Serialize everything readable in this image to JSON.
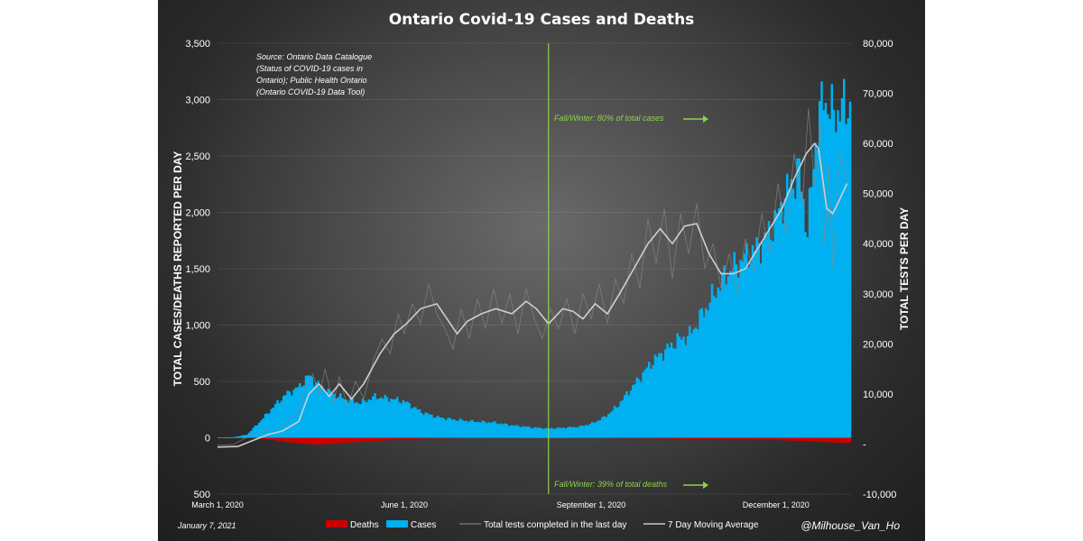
{
  "chart_data": {
    "type": "bar",
    "title": "Ontario Covid-19 Cases and Deaths",
    "source_note": [
      "Source: Ontario Data Catalogue",
      "(Status of COVID-19 cases in",
      "Ontario); Public Health Ontario",
      "(Ontario COVID-19 Data Tool)"
    ],
    "ylabel_left": "TOTAL CASES/DEATHS REPORTED PER DAY",
    "ylabel_right": "TOTAL TESTS PER DAY",
    "ylim_left": [
      -500,
      3500
    ],
    "ylim_right": [
      -10000,
      80000
    ],
    "left_ticks": [
      {
        "value": 3500,
        "label": "3,500"
      },
      {
        "value": 3000,
        "label": "3,000"
      },
      {
        "value": 2500,
        "label": "2,500"
      },
      {
        "value": 2000,
        "label": "2,000"
      },
      {
        "value": 1500,
        "label": "1,500"
      },
      {
        "value": 1000,
        "label": "1,000"
      },
      {
        "value": 500,
        "label": "500"
      },
      {
        "value": 0,
        "label": "0"
      },
      {
        "value": -500,
        "label": "500"
      }
    ],
    "right_ticks": [
      {
        "value": 80000,
        "label": "80,000"
      },
      {
        "value": 70000,
        "label": "70,000"
      },
      {
        "value": 60000,
        "label": "60,000"
      },
      {
        "value": 50000,
        "label": "50,000"
      },
      {
        "value": 40000,
        "label": "40,000"
      },
      {
        "value": 30000,
        "label": "30,000"
      },
      {
        "value": 20000,
        "label": "20,000"
      },
      {
        "value": 10000,
        "label": "10,000"
      },
      {
        "value": 0,
        "label": "-"
      },
      {
        "value": -10000,
        "label": "-10,000"
      }
    ],
    "x_range_days": [
      0,
      312
    ],
    "x_ticks": [
      {
        "day": 0,
        "label": "March 1, 2020"
      },
      {
        "day": 92,
        "label": "June 1, 2020"
      },
      {
        "day": 184,
        "label": "September 1, 2020"
      },
      {
        "day": 275,
        "label": "December 1, 2020"
      }
    ],
    "divider_day": 163,
    "annotations": {
      "cases": "Fall/Winter: 80% of total cases",
      "deaths": "Fall/Winter: 39% of total deaths"
    },
    "legend": [
      {
        "key": "deaths",
        "label": "Deaths",
        "color": "#cc0000"
      },
      {
        "key": "cases",
        "label": "Cases",
        "color": "#00b0f0"
      },
      {
        "key": "tests",
        "label": "Total tests completed in the last day",
        "color": "#909090"
      },
      {
        "key": "ma",
        "label": "7 Day Moving Average",
        "color": "#c8c8c8"
      }
    ],
    "date": "January 7, 2021",
    "handle": "@Milhouse_Van_Ho",
    "series": {
      "cases_anchors": [
        [
          0,
          0
        ],
        [
          7,
          5
        ],
        [
          14,
          30
        ],
        [
          20,
          150
        ],
        [
          27,
          300
        ],
        [
          33,
          420
        ],
        [
          40,
          500
        ],
        [
          44,
          600
        ],
        [
          46,
          580
        ],
        [
          50,
          500
        ],
        [
          55,
          440
        ],
        [
          62,
          380
        ],
        [
          70,
          340
        ],
        [
          77,
          400
        ],
        [
          85,
          380
        ],
        [
          92,
          350
        ],
        [
          100,
          250
        ],
        [
          108,
          200
        ],
        [
          115,
          180
        ],
        [
          125,
          160
        ],
        [
          135,
          150
        ],
        [
          145,
          120
        ],
        [
          155,
          100
        ],
        [
          162,
          90
        ],
        [
          168,
          95
        ],
        [
          172,
          100
        ],
        [
          178,
          110
        ],
        [
          184,
          140
        ],
        [
          190,
          200
        ],
        [
          196,
          300
        ],
        [
          202,
          450
        ],
        [
          208,
          600
        ],
        [
          214,
          750
        ],
        [
          220,
          850
        ],
        [
          226,
          950
        ],
        [
          232,
          1000
        ],
        [
          238,
          1200
        ],
        [
          244,
          1400
        ],
        [
          250,
          1600
        ],
        [
          256,
          1700
        ],
        [
          262,
          1800
        ],
        [
          268,
          1900
        ],
        [
          274,
          2100
        ],
        [
          280,
          2400
        ],
        [
          286,
          2600
        ],
        [
          290,
          2000
        ],
        [
          294,
          2900
        ],
        [
          298,
          3350
        ],
        [
          302,
          3150
        ],
        [
          306,
          3200
        ],
        [
          310,
          3250
        ]
      ],
      "deaths_anchors": [
        [
          0,
          0
        ],
        [
          18,
          -5
        ],
        [
          25,
          -15
        ],
        [
          32,
          -35
        ],
        [
          40,
          -50
        ],
        [
          48,
          -60
        ],
        [
          55,
          -55
        ],
        [
          62,
          -45
        ],
        [
          70,
          -35
        ],
        [
          80,
          -25
        ],
        [
          90,
          -15
        ],
        [
          100,
          -8
        ],
        [
          120,
          -3
        ],
        [
          160,
          -2
        ],
        [
          190,
          -3
        ],
        [
          220,
          -8
        ],
        [
          250,
          -15
        ],
        [
          275,
          -20
        ],
        [
          290,
          -30
        ],
        [
          300,
          -40
        ],
        [
          310,
          -45
        ]
      ],
      "tests_ma_anchors": [
        [
          0,
          -600
        ],
        [
          10,
          -500
        ],
        [
          18,
          800
        ],
        [
          25,
          1900
        ],
        [
          32,
          2600
        ],
        [
          40,
          4500
        ],
        [
          45,
          10000
        ],
        [
          50,
          12000
        ],
        [
          55,
          9500
        ],
        [
          60,
          12000
        ],
        [
          66,
          9000
        ],
        [
          72,
          12000
        ],
        [
          80,
          18000
        ],
        [
          87,
          22000
        ],
        [
          93,
          24000
        ],
        [
          100,
          27000
        ],
        [
          108,
          28000
        ],
        [
          113,
          25000
        ],
        [
          118,
          22000
        ],
        [
          123,
          24500
        ],
        [
          130,
          26000
        ],
        [
          137,
          27000
        ],
        [
          145,
          26000
        ],
        [
          152,
          28500
        ],
        [
          157,
          27000
        ],
        [
          163,
          24000
        ],
        [
          170,
          27000
        ],
        [
          175,
          26500
        ],
        [
          180,
          25000
        ],
        [
          186,
          28000
        ],
        [
          192,
          26000
        ],
        [
          198,
          30000
        ],
        [
          205,
          35000
        ],
        [
          212,
          40000
        ],
        [
          218,
          43000
        ],
        [
          224,
          40000
        ],
        [
          230,
          43500
        ],
        [
          236,
          44000
        ],
        [
          242,
          38000
        ],
        [
          248,
          34000
        ],
        [
          254,
          34000
        ],
        [
          260,
          35000
        ],
        [
          266,
          39000
        ],
        [
          272,
          43000
        ],
        [
          278,
          47000
        ],
        [
          284,
          53000
        ],
        [
          290,
          58000
        ],
        [
          294,
          60000
        ],
        [
          296,
          59000
        ],
        [
          300,
          47000
        ],
        [
          303,
          46000
        ],
        [
          306,
          48500
        ],
        [
          310,
          52000
        ]
      ],
      "tests_daily_anchors": [
        [
          0,
          -200
        ],
        [
          8,
          -100
        ],
        [
          15,
          1500
        ],
        [
          22,
          2500
        ],
        [
          28,
          3000
        ],
        [
          35,
          4500
        ],
        [
          40,
          7000
        ],
        [
          43,
          11000
        ],
        [
          47,
          14000
        ],
        [
          50,
          9500
        ],
        [
          53,
          15000
        ],
        [
          57,
          8000
        ],
        [
          60,
          13500
        ],
        [
          64,
          7500
        ],
        [
          68,
          12500
        ],
        [
          72,
          9000
        ],
        [
          77,
          17000
        ],
        [
          81,
          21000
        ],
        [
          85,
          18000
        ],
        [
          89,
          26000
        ],
        [
          92,
          22000
        ],
        [
          96,
          28000
        ],
        [
          100,
          24000
        ],
        [
          104,
          32000
        ],
        [
          108,
          26000
        ],
        [
          112,
          23000
        ],
        [
          116,
          19000
        ],
        [
          120,
          27000
        ],
        [
          124,
          21000
        ],
        [
          128,
          29000
        ],
        [
          132,
          23000
        ],
        [
          136,
          31000
        ],
        [
          140,
          24000
        ],
        [
          144,
          30000
        ],
        [
          148,
          22000
        ],
        [
          152,
          31000
        ],
        [
          156,
          25000
        ],
        [
          160,
          21000
        ],
        [
          164,
          27000
        ],
        [
          168,
          23000
        ],
        [
          172,
          29000
        ],
        [
          176,
          22000
        ],
        [
          180,
          30000
        ],
        [
          184,
          25000
        ],
        [
          188,
          32000
        ],
        [
          192,
          24000
        ],
        [
          196,
          33000
        ],
        [
          200,
          28000
        ],
        [
          204,
          38000
        ],
        [
          208,
          31000
        ],
        [
          212,
          45000
        ],
        [
          216,
          36000
        ],
        [
          220,
          47000
        ],
        [
          224,
          33000
        ],
        [
          228,
          46000
        ],
        [
          232,
          38000
        ],
        [
          236,
          48000
        ],
        [
          240,
          35000
        ],
        [
          244,
          40000
        ],
        [
          248,
          31000
        ],
        [
          252,
          38000
        ],
        [
          256,
          30000
        ],
        [
          260,
          41000
        ],
        [
          264,
          34000
        ],
        [
          268,
          46000
        ],
        [
          272,
          38000
        ],
        [
          276,
          52000
        ],
        [
          280,
          42000
        ],
        [
          284,
          58000
        ],
        [
          288,
          48000
        ],
        [
          291,
          67000
        ],
        [
          294,
          52000
        ],
        [
          297,
          64000
        ],
        [
          299,
          40000
        ],
        [
          301,
          56000
        ],
        [
          303,
          35000
        ],
        [
          305,
          50000
        ],
        [
          307,
          58000
        ],
        [
          310,
          52000
        ]
      ]
    }
  }
}
